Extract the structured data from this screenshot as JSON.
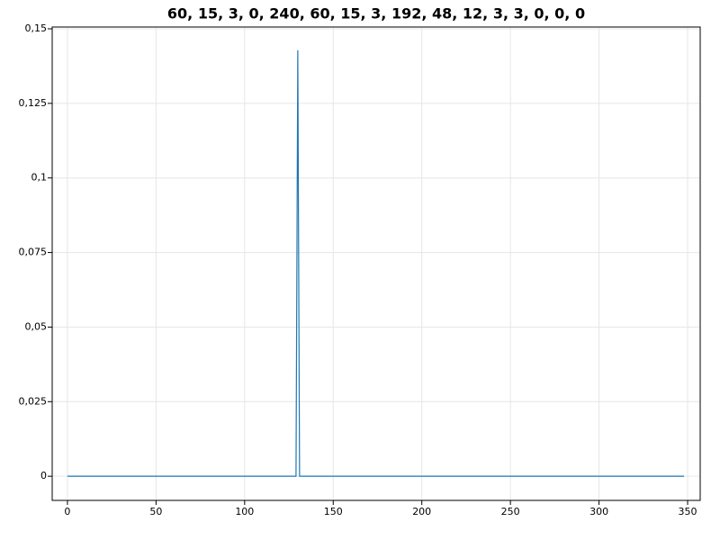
{
  "chart_data": {
    "type": "line",
    "title": "60, 15, 3, 0, 240, 60, 15, 3, 192, 48, 12, 3, 3, 0, 0, 0",
    "x": [
      0,
      129,
      130,
      131,
      348
    ],
    "series": [
      {
        "name": "series",
        "color": "#1f77b4",
        "values": [
          0,
          0,
          0.1428,
          0,
          0
        ]
      }
    ],
    "xlim": [
      -8.6,
      357.1
    ],
    "ylim": [
      -0.0081,
      0.1506
    ],
    "xticks": [
      0,
      50,
      100,
      150,
      200,
      250,
      300,
      350
    ],
    "yticks": [
      0,
      {
        "value": 0.025,
        "label": "0,025"
      },
      {
        "value": 0.05,
        "label": "0,05"
      },
      {
        "value": 0.075,
        "label": "0,075"
      },
      {
        "value": 0.1,
        "label": "0,1"
      },
      {
        "value": 0.125,
        "label": "0,125"
      },
      {
        "value": 0.15,
        "label": "0,15"
      }
    ],
    "grid": true
  }
}
